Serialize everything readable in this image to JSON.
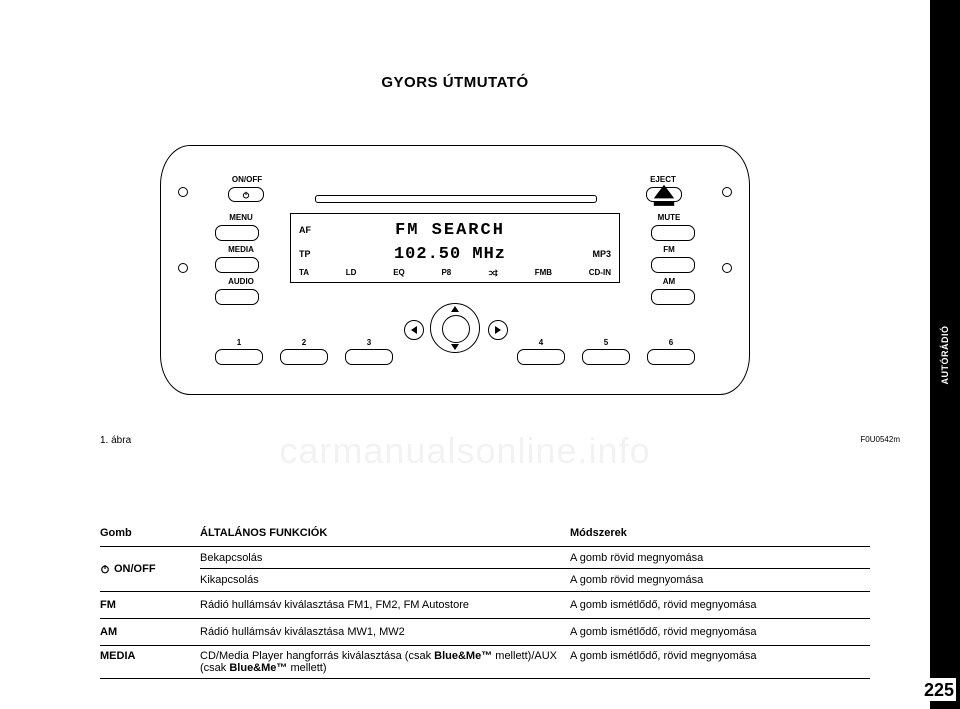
{
  "page": {
    "title": "GYORS ÚTMUTATÓ",
    "number": "225",
    "side_tab": "AUTÓRÁDIÓ",
    "watermark": "carmanualsonline.info"
  },
  "figure": {
    "caption": "1. ábra",
    "code": "F0U0542m",
    "labels": {
      "onoff": "ON/OFF",
      "menu": "MENU",
      "media": "MEDIA",
      "audio": "AUDIO",
      "eject": "EJECT",
      "mute": "MUTE",
      "fm": "FM",
      "am": "AM"
    },
    "display": {
      "af": "AF",
      "tp": "TP",
      "mp3": "MP3",
      "line1": "FM  SEARCH",
      "line2": "102.50  MHz",
      "bottom": {
        "ta": "TA",
        "ld": "LD",
        "eq": "EQ",
        "p8": "P8",
        "fmb": "FMB",
        "cdin": "CD-IN"
      }
    },
    "presets": [
      "1",
      "2",
      "3",
      "4",
      "5",
      "6"
    ]
  },
  "table": {
    "headers": {
      "c1": "Gomb",
      "c2": "ÁLTALÁNOS FUNKCIÓK",
      "c3": "Módszerek"
    },
    "rows": [
      {
        "c1_icon": true,
        "c1": "ON/OFF",
        "c2a": "Bekapcsolás",
        "c2b": "Kikapcsolás",
        "c3a": "A gomb rövid megnyomása",
        "c3b": "A gomb rövid megnyomása",
        "double": true
      },
      {
        "c1": "FM",
        "c2": "Rádió hullámsáv kiválasztása FM1, FM2, FM Autostore",
        "c3": "A gomb ismétlődő, rövid megnyomása"
      },
      {
        "c1": "AM",
        "c2": "Rádió hullámsáv kiválasztása MW1, MW2",
        "c3": "A gomb ismétlődő, rövid megnyomása"
      },
      {
        "c1": "MEDIA",
        "c2_html": "CD/Media Player hangforrás kiválasztása (csak <b>Blue&Me™</b> mellett)/AUX (csak <b>Blue&Me™</b> mellett)",
        "c3": "A gomb ismétlődő, rövid megnyomása",
        "twoline": true
      }
    ]
  },
  "style": {
    "colors": {
      "fg": "#000000",
      "bg": "#ffffff",
      "watermark": "rgba(0,0,0,0.05)"
    },
    "fonts": {
      "body": "Arial",
      "mono": "Courier New"
    }
  }
}
